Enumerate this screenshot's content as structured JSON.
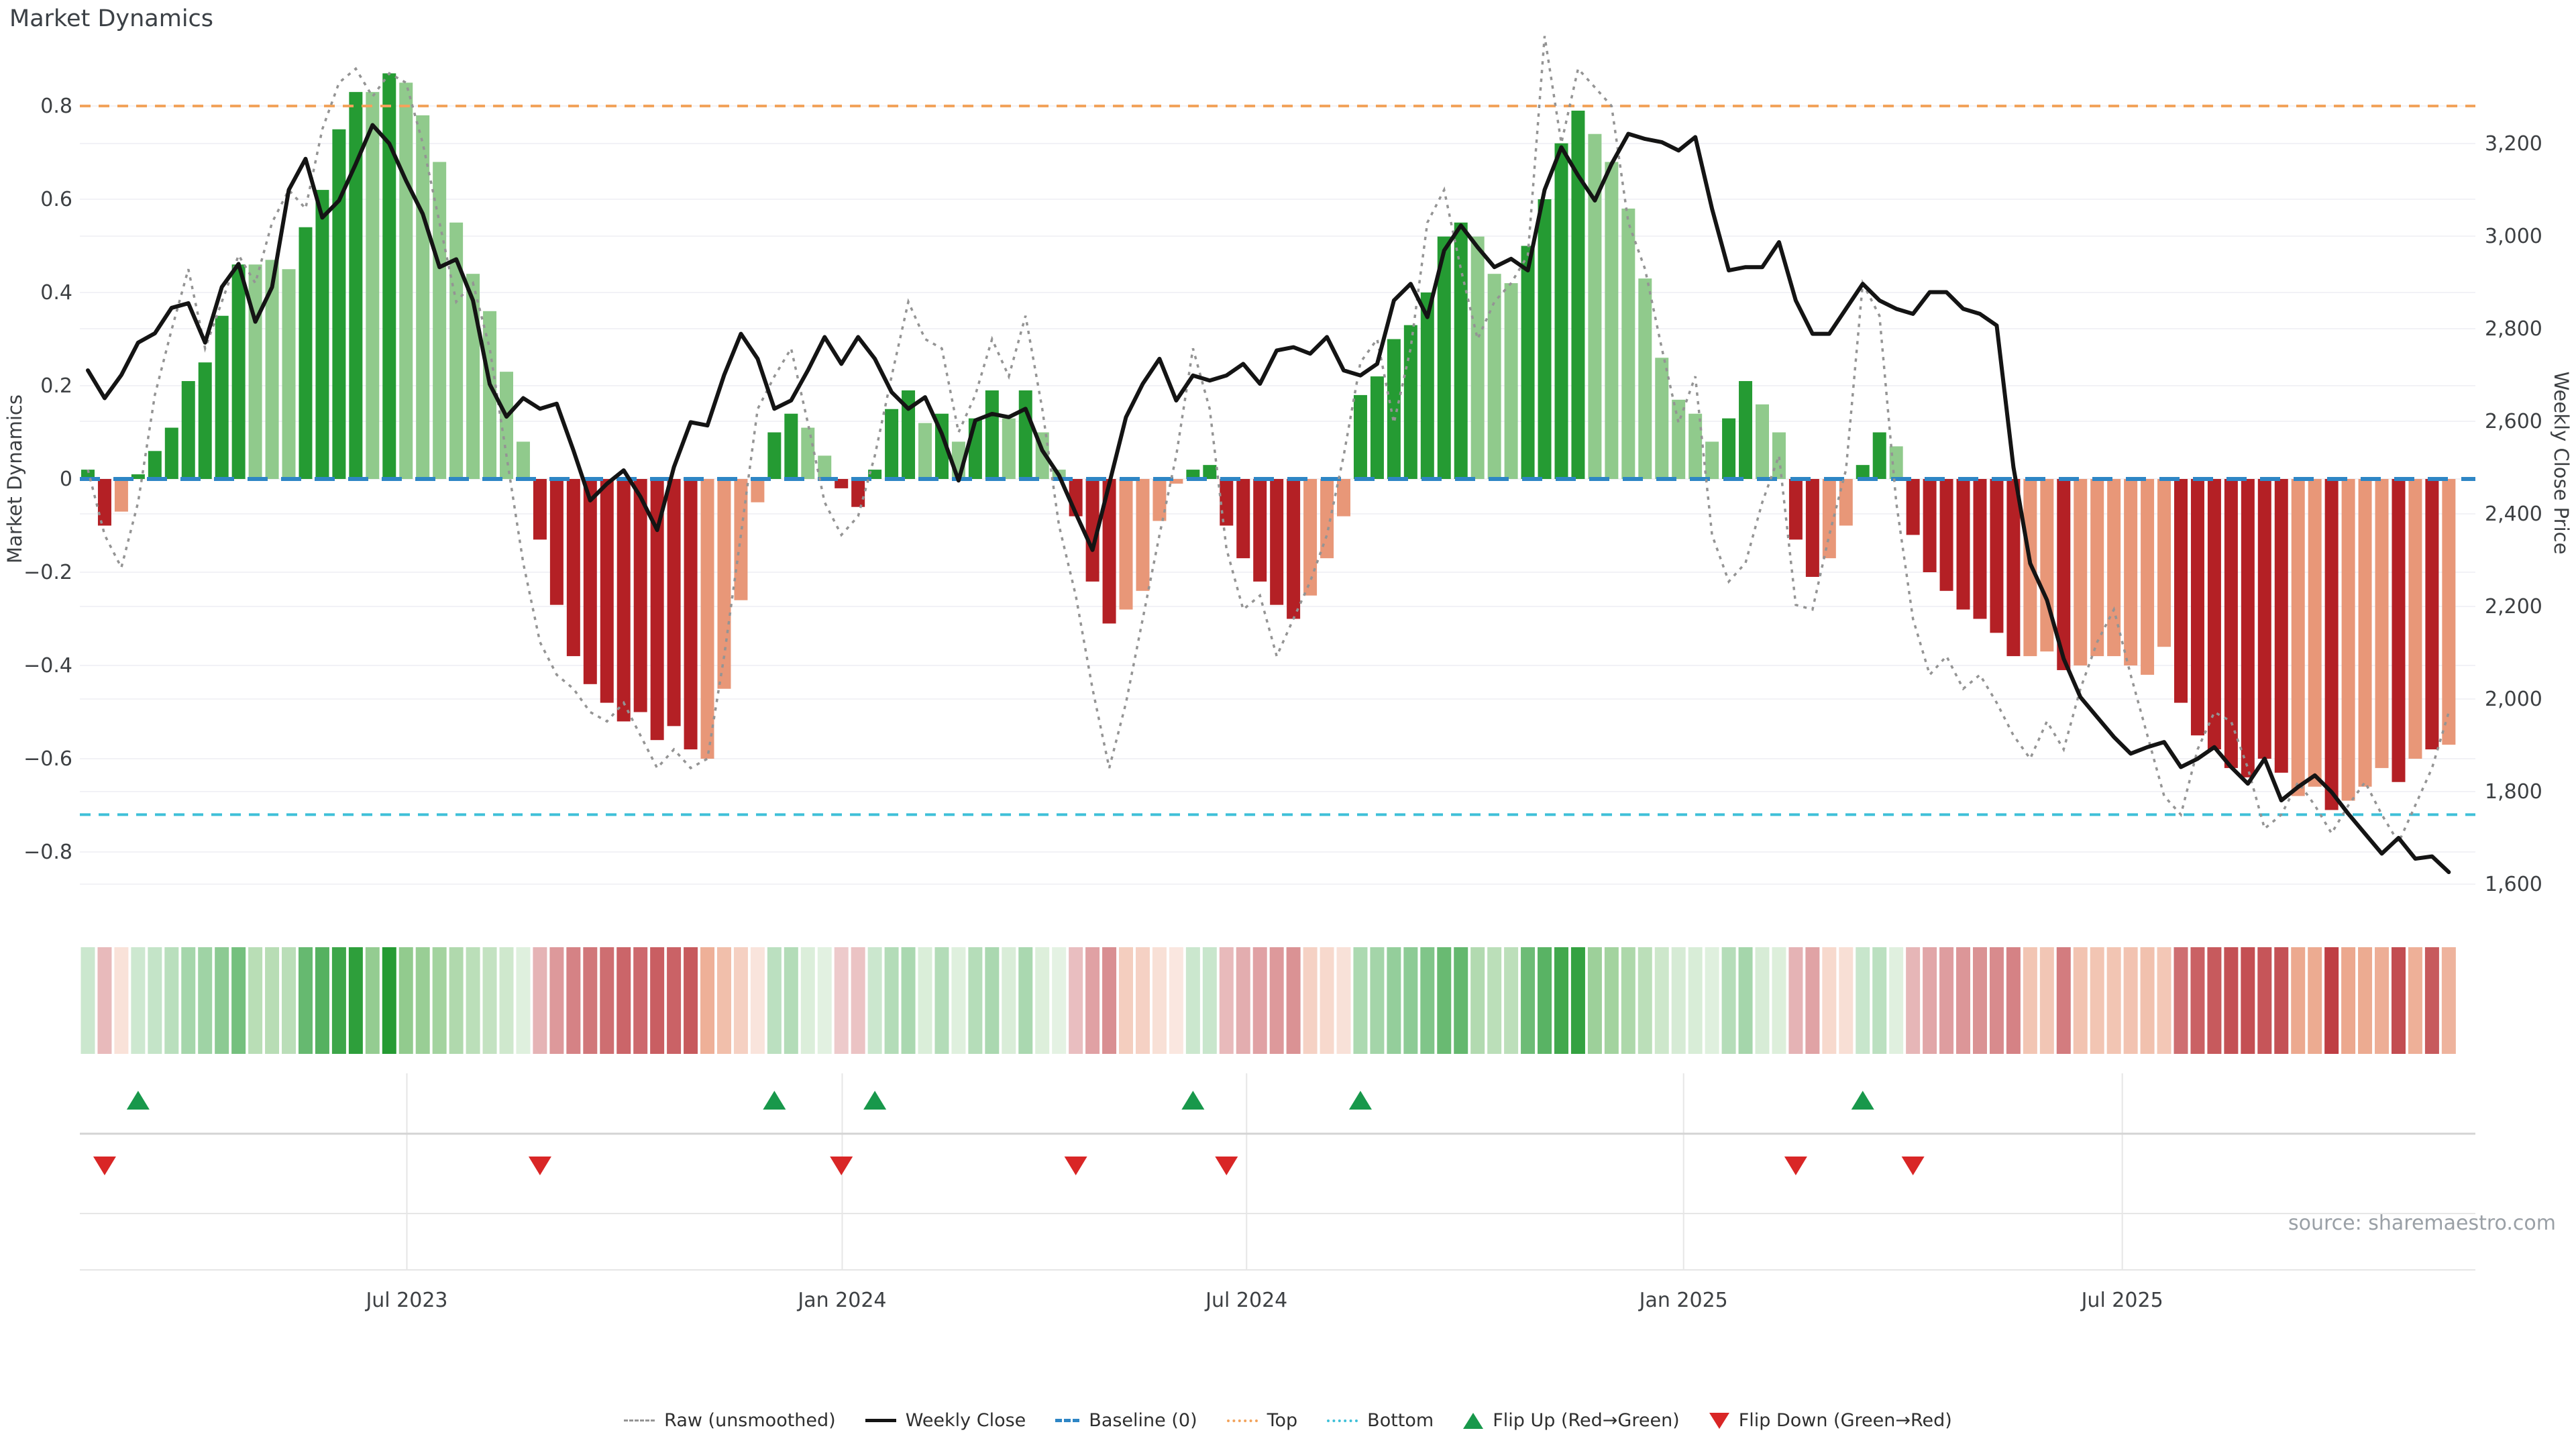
{
  "header": {
    "title": "Market Dynamics"
  },
  "axes": {
    "left_title": "Market Dynamics",
    "right_title": "Weekly Close Price"
  },
  "source": {
    "text": "source: sharemaestro.com"
  },
  "legend": {
    "items": [
      {
        "id": "raw",
        "label": "Raw (unsmoothed)"
      },
      {
        "id": "close",
        "label": "Weekly Close"
      },
      {
        "id": "baseline",
        "label": "Baseline (0)"
      },
      {
        "id": "top",
        "label": "Top"
      },
      {
        "id": "bottom",
        "label": "Bottom"
      },
      {
        "id": "flip-up",
        "label": "Flip Up (Red→Green)"
      },
      {
        "id": "flip-down",
        "label": "Flip Down (Green→Red)"
      }
    ]
  },
  "colors": {
    "dark_green": "#259b33",
    "light_green": "#90ca8c",
    "dark_red": "#b42025",
    "salmon": "#e89778",
    "top_line": "#f2a35c",
    "bottom_line": "#3fc0d8",
    "baseline": "#2e86c5",
    "raw_line": "#949494",
    "close_line": "#141414",
    "flip_up": "#18984b",
    "flip_down": "#d92626",
    "grid": "#f2f2f6",
    "panel_line": "#d4d4d4",
    "panel_grid": "#e6e6e6",
    "tick_text": "#3d4043"
  },
  "chart_data": {
    "type": "bar",
    "title": "Market Dynamics",
    "ylabel_left": "Market Dynamics",
    "ylabel_right": "Weekly Close Price",
    "ylim_left": [
      -0.9,
      0.9
    ],
    "ylim_right": [
      1600,
      3280
    ],
    "grid": true,
    "legend_position": "bottom",
    "top_threshold": 0.8,
    "bottom_threshold": -0.72,
    "baseline": 0,
    "left_ticks": [
      0.8,
      0.6,
      0.4,
      0.2,
      0,
      -0.2,
      -0.4,
      -0.6,
      -0.8
    ],
    "right_ticks": [
      3200,
      3000,
      2800,
      2600,
      2400,
      2200,
      2000,
      1800,
      1600
    ],
    "x_ticks": [
      {
        "label": "Jul 2023",
        "i": 19.05
      },
      {
        "label": "Jan 2024",
        "i": 45.05
      },
      {
        "label": "Jul 2024",
        "i": 69.2
      },
      {
        "label": "Jan 2025",
        "i": 95.3
      },
      {
        "label": "Jul 2025",
        "i": 121.5
      }
    ],
    "series": [
      {
        "name": "Market Dynamics (bars)",
        "values": [
          0.02,
          -0.1,
          -0.07,
          0.01,
          0.06,
          0.11,
          0.21,
          0.25,
          0.35,
          0.46,
          0.46,
          0.47,
          0.45,
          0.54,
          0.62,
          0.75,
          0.83,
          0.83,
          0.87,
          0.85,
          0.78,
          0.68,
          0.55,
          0.44,
          0.36,
          0.23,
          0.08,
          -0.13,
          -0.27,
          -0.38,
          -0.44,
          -0.48,
          -0.52,
          -0.5,
          -0.56,
          -0.53,
          -0.58,
          -0.6,
          -0.45,
          -0.26,
          -0.05,
          0.1,
          0.14,
          0.11,
          0.05,
          -0.02,
          -0.06,
          0.02,
          0.15,
          0.19,
          0.12,
          0.14,
          0.08,
          0.13,
          0.19,
          0.13,
          0.19,
          0.1,
          0.02,
          -0.08,
          -0.22,
          -0.31,
          -0.28,
          -0.24,
          -0.09,
          -0.01,
          0.02,
          0.03,
          -0.1,
          -0.17,
          -0.22,
          -0.27,
          -0.3,
          -0.25,
          -0.17,
          -0.08,
          0.18,
          0.22,
          0.3,
          0.33,
          0.4,
          0.52,
          0.55,
          0.52,
          0.44,
          0.42,
          0.5,
          0.6,
          0.72,
          0.79,
          0.74,
          0.68,
          0.58,
          0.43,
          0.26,
          0.17,
          0.14,
          0.08,
          0.13,
          0.21,
          0.16,
          0.1,
          -0.13,
          -0.21,
          -0.17,
          -0.1,
          0.03,
          0.1,
          0.07,
          -0.12,
          -0.2,
          -0.24,
          -0.28,
          -0.3,
          -0.33,
          -0.38,
          -0.38,
          -0.37,
          -0.41,
          -0.4,
          -0.38,
          -0.38,
          -0.4,
          -0.42,
          -0.36,
          -0.48,
          -0.55,
          -0.58,
          -0.62,
          -0.64,
          -0.6,
          -0.63,
          -0.68,
          -0.66,
          -0.71,
          -0.69,
          -0.66,
          -0.62,
          -0.65,
          -0.6,
          -0.58,
          -0.57
        ]
      },
      {
        "name": "Raw (unsmoothed)",
        "values": [
          0.02,
          -0.12,
          -0.19,
          -0.05,
          0.18,
          0.32,
          0.45,
          0.28,
          0.38,
          0.48,
          0.42,
          0.55,
          0.62,
          0.58,
          0.75,
          0.85,
          0.88,
          0.82,
          0.87,
          0.85,
          0.72,
          0.55,
          0.38,
          0.42,
          0.28,
          0.05,
          -0.18,
          -0.35,
          -0.42,
          -0.45,
          -0.5,
          -0.52,
          -0.48,
          -0.55,
          -0.62,
          -0.58,
          -0.62,
          -0.6,
          -0.38,
          -0.12,
          0.15,
          0.22,
          0.28,
          0.12,
          -0.05,
          -0.12,
          -0.08,
          0.05,
          0.22,
          0.38,
          0.3,
          0.28,
          0.1,
          0.18,
          0.3,
          0.22,
          0.35,
          0.15,
          -0.1,
          -0.25,
          -0.45,
          -0.62,
          -0.48,
          -0.3,
          -0.12,
          0.05,
          0.28,
          0.15,
          -0.15,
          -0.28,
          -0.25,
          -0.38,
          -0.3,
          -0.22,
          -0.12,
          0.05,
          0.25,
          0.3,
          0.12,
          0.28,
          0.55,
          0.62,
          0.45,
          0.3,
          0.38,
          0.42,
          0.48,
          0.95,
          0.72,
          0.88,
          0.84,
          0.8,
          0.55,
          0.45,
          0.28,
          0.12,
          0.22,
          -0.12,
          -0.22,
          -0.18,
          -0.05,
          0.05,
          -0.27,
          -0.28,
          -0.12,
          0.02,
          0.42,
          0.35,
          -0.05,
          -0.3,
          -0.42,
          -0.38,
          -0.45,
          -0.42,
          -0.48,
          -0.55,
          -0.6,
          -0.52,
          -0.58,
          -0.45,
          -0.35,
          -0.28,
          -0.42,
          -0.55,
          -0.68,
          -0.72,
          -0.58,
          -0.5,
          -0.52,
          -0.62,
          -0.75,
          -0.72,
          -0.65,
          -0.7,
          -0.76,
          -0.7,
          -0.65,
          -0.72,
          -0.78,
          -0.7,
          -0.62,
          -0.5
        ]
      },
      {
        "name": "Weekly Close",
        "values": [
          2710,
          2650,
          2700,
          2770,
          2790,
          2845,
          2855,
          2770,
          2890,
          2940,
          2815,
          2890,
          3100,
          3167,
          3040,
          3077,
          3156,
          3240,
          3200,
          3120,
          3048,
          2933,
          2950,
          2861,
          2680,
          2610,
          2650,
          2627,
          2638,
          2537,
          2429,
          2465,
          2494,
          2437,
          2365,
          2501,
          2598,
          2591,
          2700,
          2789,
          2735,
          2627,
          2645,
          2710,
          2782,
          2724,
          2782,
          2735,
          2663,
          2627,
          2652,
          2573,
          2472,
          2602,
          2616,
          2609,
          2627,
          2537,
          2483,
          2401,
          2322,
          2465,
          2609,
          2681,
          2735,
          2645,
          2699,
          2688,
          2699,
          2724,
          2681,
          2753,
          2760,
          2746,
          2782,
          2710,
          2699,
          2724,
          2861,
          2897,
          2825,
          2969,
          3023,
          2976,
          2933,
          2951,
          2926,
          3100,
          3192,
          3131,
          3077,
          3156,
          3221,
          3210,
          3203,
          3185,
          3214,
          3059,
          2926,
          2933,
          2933,
          2987,
          2861,
          2789,
          2789,
          2843,
          2897,
          2861,
          2843,
          2832,
          2879,
          2879,
          2843,
          2832,
          2807,
          2501,
          2293,
          2214,
          2087,
          2004,
          1961,
          1918,
          1882,
          1896,
          1907,
          1853,
          1871,
          1896,
          1853,
          1817,
          1871,
          1781,
          1810,
          1835,
          1799,
          1752,
          1709,
          1666,
          1700,
          1655,
          1660,
          1626
        ]
      }
    ],
    "bar_shades": "GRrGGGGGGGgggGGGGgGggggggggRRRRRRRRRRrrrrGGggRRGGGgGgGGgGggRRRrrrrGGRRRRRrrrGGGGGGGgggGGGGggggggggGGggRRrrGGgRRRRRRRrrRrrrrrrRRRRRRRrrRrrrRrRr",
    "flip_up_indices": [
      3,
      41,
      47,
      66,
      76,
      106
    ],
    "flip_down_indices": [
      1,
      27,
      45,
      59,
      68,
      102,
      109
    ]
  }
}
